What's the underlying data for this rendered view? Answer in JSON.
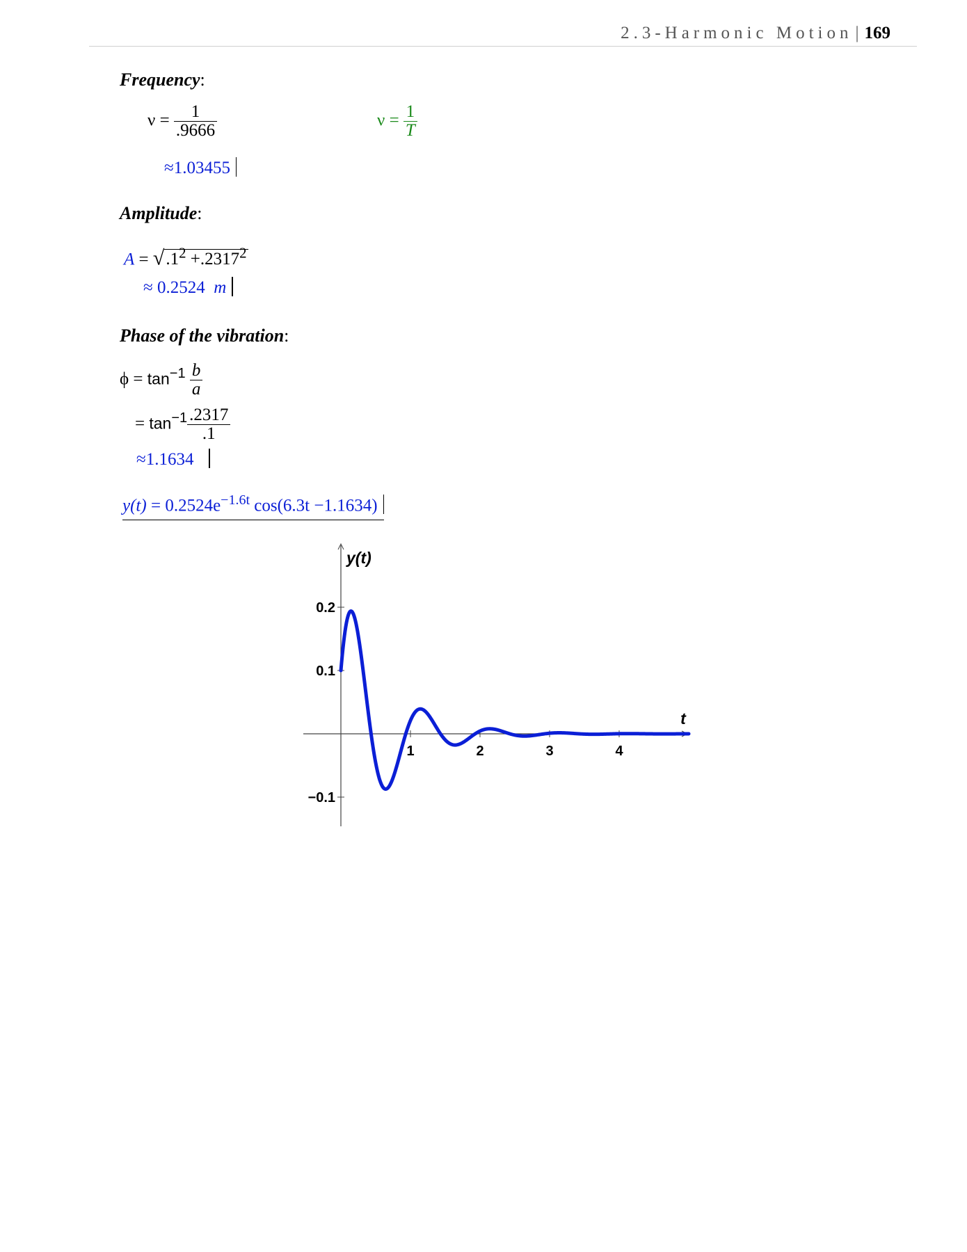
{
  "header": {
    "chapter": "2.3-Harmonic Motion",
    "separator": "|",
    "page": "169"
  },
  "frequency": {
    "heading": "Frequency",
    "colon": ":",
    "nu": "ν",
    "eq": "=",
    "num": "1",
    "den": ".9666",
    "result": "≈1.03455",
    "note_nu": "ν",
    "note_eq": "=",
    "note_num": "1",
    "note_den": "T"
  },
  "amplitude": {
    "heading": "Amplitude",
    "colon": ":",
    "lhs": "A",
    "eq": "=",
    "radical": "√",
    "base1": ".1",
    "exp1": "2",
    "plus": "+",
    "base2": ".2317",
    "exp2": "2",
    "result": "≈ 0.2524",
    "unit": "m"
  },
  "phase": {
    "heading": "Phase of the vibration",
    "colon": ":",
    "phi": "ϕ",
    "eq": "=",
    "tan": "tan",
    "inv": "−1",
    "num1": "b",
    "den1": "a",
    "num2": ".2317",
    "den2": ".1",
    "result": "≈1.1634"
  },
  "solution": {
    "lhs": "y(t)",
    "eq": "=",
    "coef": "0.2524e",
    "exponent": "−1.6t",
    "cos": "cos(6.3t −1.1634)"
  },
  "chart_data": {
    "type": "line",
    "function": "y(t) = 0.2524 e^(-1.6t) cos(6.3t - 1.1634)",
    "xlabel": "t",
    "ylabel": "y(t)",
    "xlim": [
      0,
      5
    ],
    "ylim": [
      -0.15,
      0.3
    ],
    "x_ticks": [
      1,
      2,
      3,
      4
    ],
    "x_tick_labels": [
      "1",
      "2",
      "3",
      "4"
    ],
    "y_ticks": [
      0.2,
      0.1,
      -0.1
    ],
    "y_tick_labels": [
      "0.2",
      "0.1",
      "−0.1"
    ],
    "grid": false,
    "line_color": "#0b1fd6",
    "series": [
      {
        "x": [
          0,
          0.1,
          0.2,
          0.3,
          0.4,
          0.5,
          0.6,
          0.7,
          0.8,
          0.9,
          1.0,
          1.1,
          1.2,
          1.3,
          1.4,
          1.5,
          1.6,
          1.7,
          1.8,
          1.9,
          2.0,
          2.2,
          2.4,
          2.6,
          2.8,
          3.0,
          3.5,
          4.0,
          4.5,
          5.0
        ],
        "y": [
          0.101,
          0.189,
          0.169,
          0.059,
          -0.052,
          -0.088,
          -0.061,
          -0.003,
          0.037,
          0.04,
          0.018,
          -0.006,
          -0.019,
          -0.012,
          0.001,
          0.008,
          0.007,
          0.002,
          -0.003,
          -0.004,
          -0.001,
          0.002,
          -0.001,
          -0.001,
          0.0,
          0.0,
          0.0,
          0.0,
          0.0,
          0.0
        ]
      }
    ]
  }
}
